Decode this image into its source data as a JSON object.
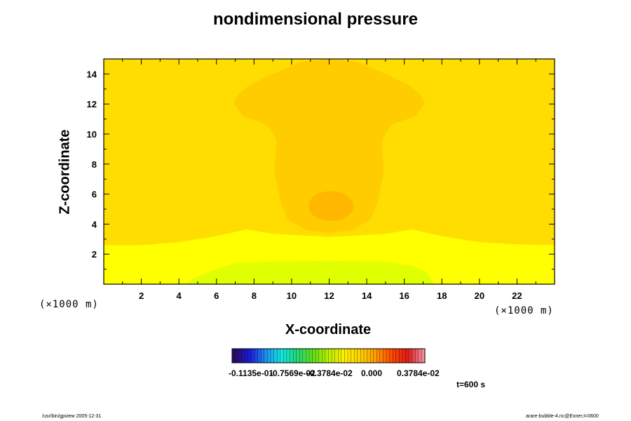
{
  "chart_data": {
    "type": "heatmap",
    "title": "nondimensional pressure",
    "xlabel": "X-coordinate",
    "ylabel": "Z-coordinate",
    "x_unit": "(×1000 m)",
    "y_unit": "(×1000 m)",
    "xlim": [
      0,
      24
    ],
    "ylim": [
      0,
      15
    ],
    "x_ticks": [
      2,
      4,
      6,
      8,
      10,
      12,
      14,
      16,
      18,
      20,
      22
    ],
    "y_ticks": [
      2,
      4,
      6,
      8,
      10,
      12,
      14
    ],
    "colorbar_labels": [
      "-0.1135e-01",
      "-0.7569e-02",
      "-0.3784e-02",
      "0.000",
      "0.3784e-02"
    ],
    "colorbar_colors": [
      "#2a0a5e",
      "#1a1ad8",
      "#1e8cf0",
      "#14e6e6",
      "#22d87a",
      "#5de01c",
      "#b8f000",
      "#fff000",
      "#ffd200",
      "#ff9a00",
      "#ff4a00",
      "#e01a1a",
      "#f28ca0"
    ],
    "field_colors": {
      "background": "#ffdd00",
      "plume": "#ffcc00",
      "core": "#ffb700",
      "low_layer": "#ffff00",
      "lowest": "#e0ff00"
    },
    "time_label": "t=600 s"
  },
  "footer": {
    "left": "/usr/bin/gpview 2005-12-31",
    "right": "arare-bubble-4.nc@Exner,t=0600"
  }
}
